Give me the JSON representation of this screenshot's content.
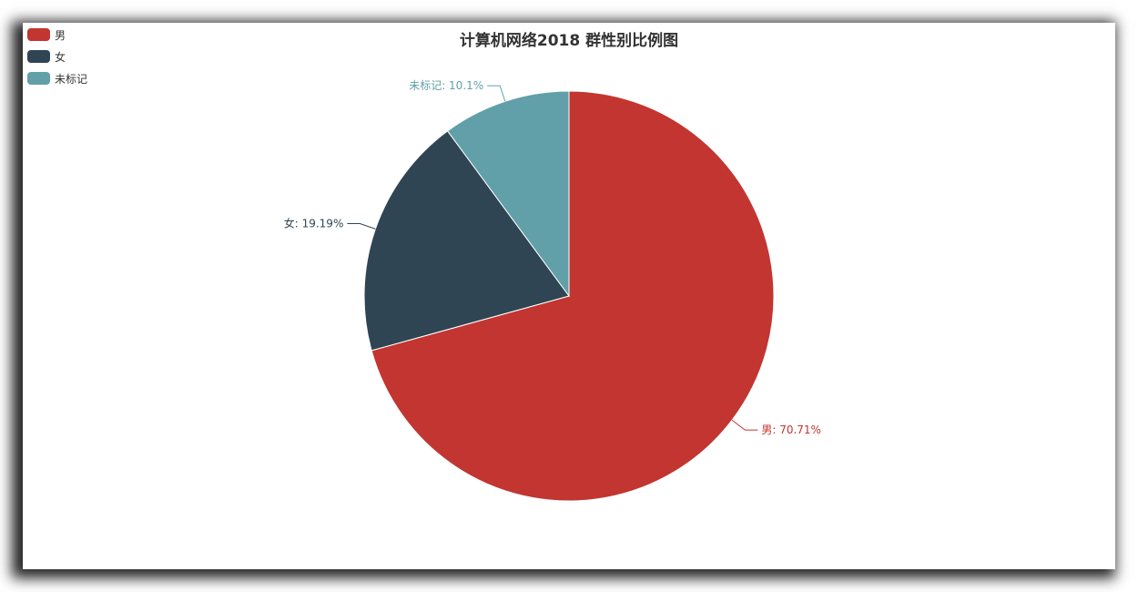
{
  "chart_data": {
    "type": "pie",
    "title": "计算机网络2018 群性别比例图",
    "categories": [
      "男",
      "女",
      "未标记"
    ],
    "values": [
      70.71,
      19.19,
      10.1
    ],
    "unit": "%",
    "labels": [
      "男: 70.71%",
      "女: 19.19%",
      "未标记: 10.1%"
    ],
    "colors": [
      "#c23531",
      "#2f4554",
      "#61a0a8"
    ],
    "legend_position": "top-left"
  }
}
